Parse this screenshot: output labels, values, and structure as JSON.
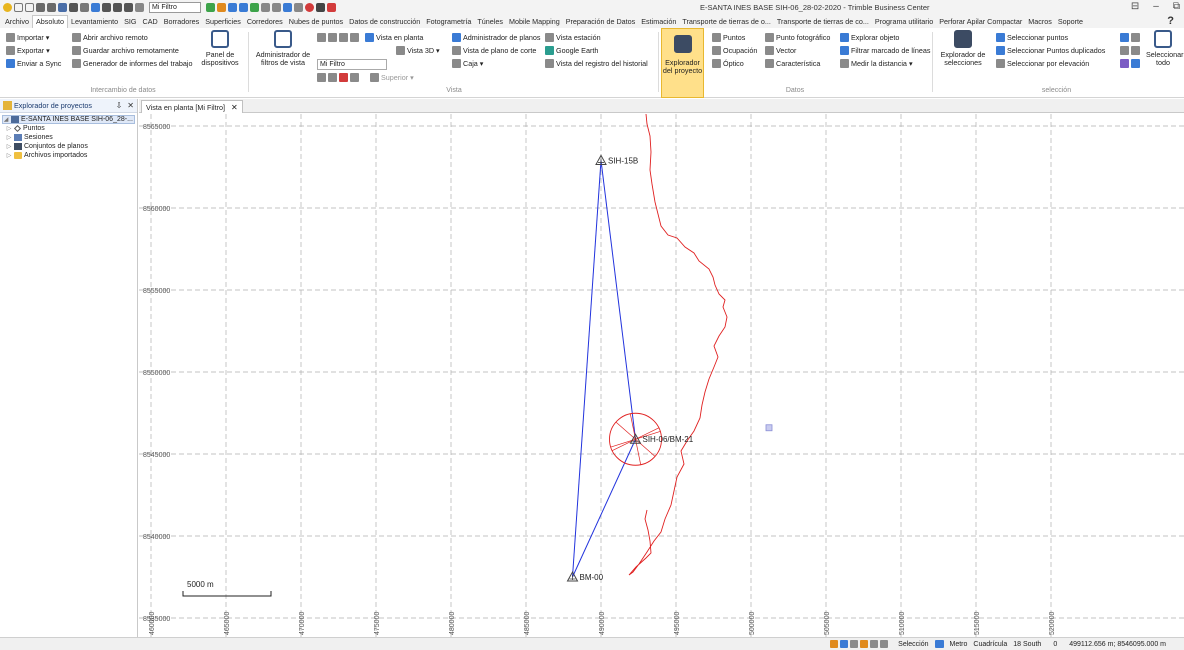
{
  "window": {
    "title": "E-SANTA INES BASE SIH-06_28-02-2020 - Trimble Business Center",
    "quick_access_filter": "Mi Filtro",
    "controls": [
      "⊟",
      "–",
      "⧉"
    ]
  },
  "menu": {
    "items": [
      "Archivo",
      "Absoluto",
      "Levantamiento",
      "SIG",
      "CAD",
      "Borradores",
      "Superficies",
      "Corredores",
      "Nubes de puntos",
      "Datos de construcción",
      "Fotogrametría",
      "Túneles",
      "Mobile Mapping",
      "Preparación de Datos",
      "Estimación",
      "Transporte de tierras de o...",
      "Transporte de tierras de co...",
      "Programa utilitario",
      "Perforar Apilar Compactar",
      "Macros",
      "Soporte"
    ],
    "active": "Absoluto",
    "help": "?"
  },
  "ribbon": {
    "data_exchange": {
      "import": "Importar",
      "export": "Exportar",
      "send_sync": "Enviar a Sync",
      "open_remote": "Abrir archivo remoto",
      "save_remote": "Guardar archivo remotamente",
      "report_generator": "Generador de informes del trabajo",
      "device_panel": "Panel de dispositivos",
      "group_label": "Intercambio de datos"
    },
    "view": {
      "filter_manager": "Administrador de filtros de vista",
      "filter_select": "Mi Filtro",
      "plan_view": "Vista en planta",
      "view3d": "Vista 3D",
      "top": "Superior",
      "plan_manager": "Administrador de planos",
      "section_view": "Vista de plano de corte",
      "box": "Caja",
      "station_view": "Vista estación",
      "google_earth": "Google Earth",
      "history_view": "Vista del registro del historial",
      "group_label": "Vista"
    },
    "data": {
      "project_explorer": "Explorador del proyecto",
      "points": "Puntos",
      "occupation": "Ocupación",
      "optical": "Óptico",
      "photo_point": "Punto fotográfico",
      "vector": "Vector",
      "feature": "Característica",
      "explore_object": "Explorar objeto",
      "filter_line_marks": "Filtrar marcado de líneas",
      "measure_distance": "Medir la distancia",
      "group_label": "Datos"
    },
    "selection": {
      "selection_explorer": "Explorador de selecciones",
      "select_points": "Seleccionar puntos",
      "select_duplicates": "Seleccionar Puntos duplicados",
      "select_by_elevation": "Seleccionar por elevación",
      "select_all": "Seleccionar todo",
      "group_label": "selección"
    }
  },
  "project_panel": {
    "title": "Explorador de proyectos",
    "pin": "⇩",
    "close": "✕",
    "root": "E-SANTA INES BASE SIH-06_28-...",
    "nodes": [
      "Puntos",
      "Sesiones",
      "Conjuntos de planos",
      "Archivos importados"
    ]
  },
  "document_tab": {
    "label": "Vista en planta [Mi Filtro]",
    "close": "✕"
  },
  "plan_view": {
    "y_ticks": [
      {
        "label": "8565000",
        "value": 8565000
      },
      {
        "label": "8560000",
        "value": 8560000
      },
      {
        "label": "8555000",
        "value": 8555000
      },
      {
        "label": "8550000",
        "value": 8550000
      },
      {
        "label": "8545000",
        "value": 8545000
      },
      {
        "label": "8540000",
        "value": 8540000
      },
      {
        "label": "8535000",
        "value": 8535000
      }
    ],
    "x_ticks": [
      {
        "label": "460000",
        "value": 460000
      },
      {
        "label": "465000",
        "value": 465000
      },
      {
        "label": "470000",
        "value": 470000
      },
      {
        "label": "475000",
        "value": 475000
      },
      {
        "label": "480000",
        "value": 480000
      },
      {
        "label": "485000",
        "value": 485000
      },
      {
        "label": "490000",
        "value": 490000
      },
      {
        "label": "495000",
        "value": 495000
      },
      {
        "label": "500000",
        "value": 500000
      },
      {
        "label": "505000",
        "value": 505000
      },
      {
        "label": "510000",
        "value": 510000
      },
      {
        "label": "515000",
        "value": 515000
      },
      {
        "label": "520000",
        "value": 520000
      }
    ],
    "points": [
      {
        "name": "SIH-15B",
        "x": 490000,
        "y": 8562900
      },
      {
        "name": "SIH-06/BM-21",
        "x": 492300,
        "y": 8545900
      },
      {
        "name": "BM-00",
        "x": 488100,
        "y": 8537500
      }
    ],
    "vectors": [
      {
        "from": "SIH-15B",
        "to": "BM-00"
      },
      {
        "from": "SIH-15B",
        "to": "SIH-06/BM-21"
      },
      {
        "from": "SIH-06/BM-21",
        "to": "BM-00"
      }
    ],
    "extra_marker": {
      "x": 501200,
      "y": 8546600
    },
    "error_ellipse_at": "SIH-06/BM-21",
    "scale_bar_label": "5000 m",
    "colors": {
      "grid": "#b0b0b0",
      "vector": "#2233dd",
      "track": "#e02020",
      "point": "#444444",
      "marker": "#8b8fd6"
    }
  },
  "status": {
    "selection": "Selección",
    "unit": "Metro",
    "grid": "Cuadrícula",
    "zone": "18 South",
    "count": "0",
    "coords": "499112.656 m; 8546095.000 m"
  }
}
